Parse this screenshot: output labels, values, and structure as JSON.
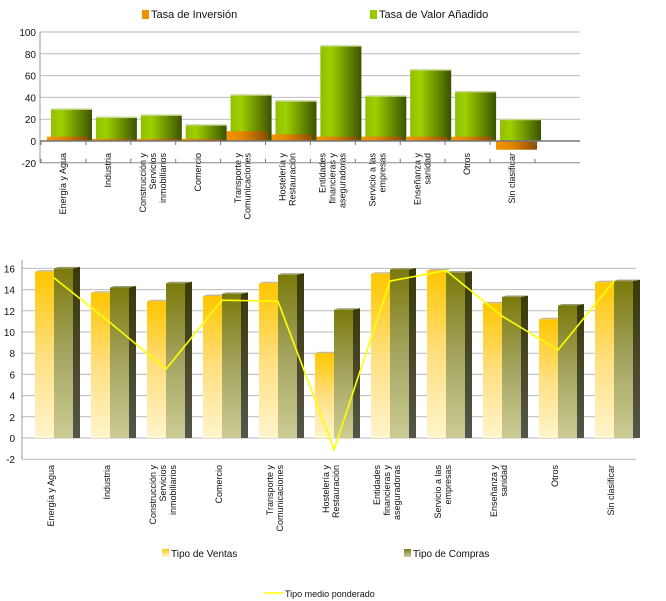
{
  "chart_data": [
    {
      "type": "bar",
      "categories": [
        [
          "Energía y Agua"
        ],
        [
          "Industria"
        ],
        [
          "Construcción y",
          "Servicios",
          "inmobiliarios"
        ],
        [
          "Comercio"
        ],
        [
          "Transporte y",
          "Comunicaciones"
        ],
        [
          "Hostelería y",
          "Restauración"
        ],
        [
          "Entidades",
          "financieras y",
          "aseguradoras"
        ],
        [
          "Servicio a las",
          "empresas"
        ],
        [
          "Enseñanza y",
          "sanidad"
        ],
        [
          "Otros"
        ],
        [
          "Sin clasificar"
        ]
      ],
      "series": [
        {
          "name": "Tasa de Inversión",
          "color": "#f29100",
          "values": [
            4,
            2,
            2,
            2,
            9,
            6,
            4,
            4,
            4,
            4,
            -8
          ]
        },
        {
          "name": "Tasa de Valor Añadido",
          "color": "#99cc00",
          "values": [
            29,
            21.5,
            23.5,
            14.5,
            42,
            36.5,
            87,
            41,
            65,
            45,
            19.5
          ]
        }
      ],
      "ylim": [
        -20,
        100
      ],
      "yticks": [
        -20,
        0,
        20,
        40,
        60,
        80,
        100
      ],
      "grid": true,
      "legend": "top"
    },
    {
      "type": "bar",
      "categories": [
        [
          "Energía y Agua"
        ],
        [
          "Industria"
        ],
        [
          "Construcción y",
          "Servicios",
          "inmobiliarios"
        ],
        [
          "Comercio"
        ],
        [
          "Transporte y",
          "Comunicaciones"
        ],
        [
          "Hostelería y",
          "Restauración"
        ],
        [
          "Entidades",
          "financieras y",
          "aseguradoras"
        ],
        [
          "Servicio a las",
          "empresas"
        ],
        [
          "Enseñanza y",
          "sanidad"
        ],
        [
          "Otros"
        ],
        [
          "Sin clasificar"
        ]
      ],
      "series": [
        {
          "name": "Tipo de Ventas",
          "type": "bar",
          "color": "#ffc800",
          "values": [
            15.7,
            13.7,
            12.9,
            13.4,
            14.6,
            8.0,
            15.5,
            15.8,
            12.7,
            11.2,
            14.7
          ]
        },
        {
          "name": "Tipo de Compras",
          "type": "bar",
          "color": "#7a7a10",
          "values": [
            16.0,
            14.2,
            14.6,
            13.6,
            15.4,
            12.1,
            15.9,
            15.6,
            13.3,
            12.5,
            14.8
          ]
        },
        {
          "name": "Tipo medio ponderado",
          "type": "line",
          "color": "#ffff00",
          "values": [
            15.1,
            10.9,
            6.5,
            13.0,
            12.9,
            -1.1,
            14.8,
            15.8,
            11.5,
            8.3,
            14.8
          ]
        }
      ],
      "ylim": [
        -2,
        16
      ],
      "yticks": [
        -2,
        0,
        2,
        4,
        6,
        8,
        10,
        12,
        14,
        16
      ],
      "grid": true,
      "legend": "bottom"
    }
  ]
}
